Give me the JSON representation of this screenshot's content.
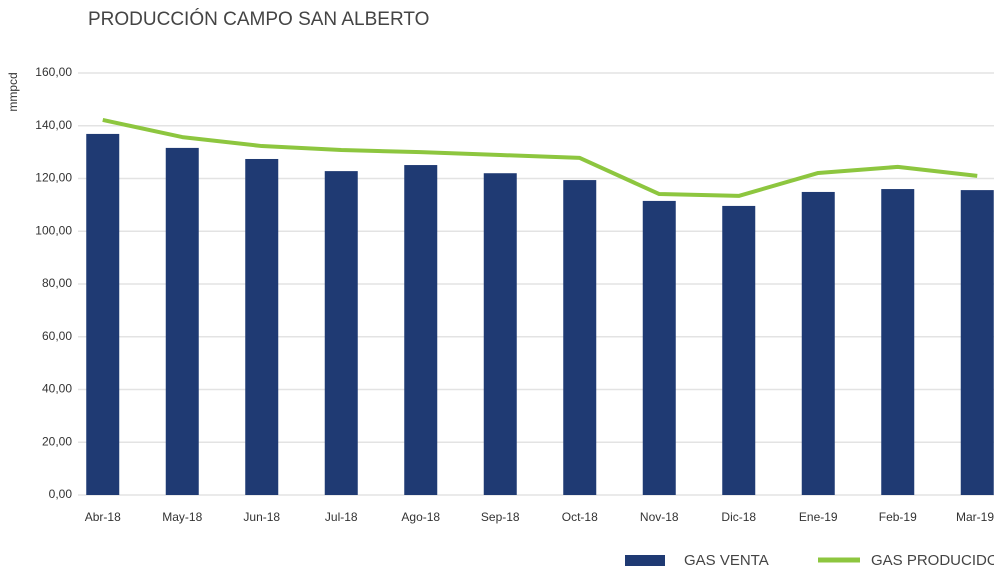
{
  "chart_data": {
    "type": "bar_line",
    "title": "PRODUCCIÓN CAMPO SAN ALBERTO",
    "y_label": "mmpcd",
    "categories": [
      "Abr-18",
      "May-18",
      "Jun-18",
      "Jul-18",
      "Ago-18",
      "Sep-18",
      "Oct-18",
      "Nov-18",
      "Dic-18",
      "Ene-19",
      "Feb-19",
      "Mar-19"
    ],
    "series": [
      {
        "name": "GAS VENTA",
        "color": "#1f3a73",
        "kind": "bar",
        "values": [
          136.9,
          131.6,
          127.4,
          122.8,
          125.1,
          122.0,
          119.4,
          111.5,
          109.6,
          114.9,
          116.0,
          115.6
        ]
      },
      {
        "name": "GAS PRODUCIDO",
        "color": "#8dc63f",
        "kind": "line",
        "values": [
          142.2,
          135.7,
          132.3,
          130.8,
          130.0,
          128.9,
          127.8,
          114.1,
          113.4,
          122.1,
          124.4,
          121.0
        ]
      }
    ],
    "ylim": [
      0,
      160
    ],
    "yticks": [
      {
        "value": 0,
        "label": "0,00"
      },
      {
        "value": 20,
        "label": "20,00"
      },
      {
        "value": 40,
        "label": "40,00"
      },
      {
        "value": 60,
        "label": "60,00"
      },
      {
        "value": 80,
        "label": "80,00"
      },
      {
        "value": 100,
        "label": "100,00"
      },
      {
        "value": 120,
        "label": "120,00"
      },
      {
        "value": 140,
        "label": "140,00"
      },
      {
        "value": 160,
        "label": "160,00"
      }
    ],
    "grid": true,
    "legend": "bottom-right"
  }
}
